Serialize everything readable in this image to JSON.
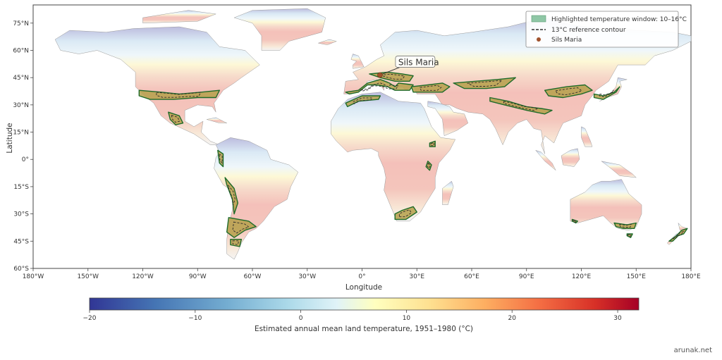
{
  "map": {
    "x_axis": {
      "title": "Longitude",
      "ticks": [
        {
          "value": -180,
          "label": "180°W"
        },
        {
          "value": -150,
          "label": "150°W"
        },
        {
          "value": -120,
          "label": "120°W"
        },
        {
          "value": -90,
          "label": "90°W"
        },
        {
          "value": -60,
          "label": "60°W"
        },
        {
          "value": -30,
          "label": "30°W"
        },
        {
          "value": 0,
          "label": "0°"
        },
        {
          "value": 30,
          "label": "30°E"
        },
        {
          "value": 60,
          "label": "60°E"
        },
        {
          "value": 90,
          "label": "90°E"
        },
        {
          "value": 120,
          "label": "120°E"
        },
        {
          "value": 150,
          "label": "150°E"
        },
        {
          "value": 180,
          "label": "180°E"
        }
      ],
      "range": [
        -180,
        180
      ]
    },
    "y_axis": {
      "title": "Latitude",
      "ticks": [
        {
          "value": 75,
          "label": "75°N"
        },
        {
          "value": 60,
          "label": "60°N"
        },
        {
          "value": 45,
          "label": "45°N"
        },
        {
          "value": 30,
          "label": "30°N"
        },
        {
          "value": 15,
          "label": "15°N"
        },
        {
          "value": 0,
          "label": "0°"
        },
        {
          "value": -15,
          "label": "15°S"
        },
        {
          "value": -30,
          "label": "30°S"
        },
        {
          "value": -45,
          "label": "45°S"
        },
        {
          "value": -60,
          "label": "60°S"
        }
      ],
      "range": [
        -60,
        85
      ]
    },
    "legend": {
      "placement": "top-right",
      "items": [
        {
          "label": "Highlighted temperature window: 10–16°C",
          "kind": "patch",
          "color": "#8fc7a6"
        },
        {
          "label": "13°C reference contour",
          "kind": "dashed-line",
          "color": "#333333"
        },
        {
          "label": "Sils Maria",
          "kind": "point",
          "color": "#a0522d"
        }
      ]
    },
    "annotation": {
      "label": "Sils Maria",
      "lon": 9.8,
      "lat": 46.4
    },
    "colors": {
      "cold": "#313695",
      "mid": "#ffffbf",
      "hot": "#a50026",
      "window_fill": "#b5a04a",
      "window_edge": "#1f6b2a"
    }
  },
  "colorbar": {
    "title": "Estimated annual mean land temperature, 1951–1980 (°C)",
    "min": -20,
    "max": 32,
    "ticks": [
      {
        "value": -20,
        "label": "−20"
      },
      {
        "value": -10,
        "label": "−10"
      },
      {
        "value": 0,
        "label": "0"
      },
      {
        "value": 10,
        "label": "10"
      },
      {
        "value": 20,
        "label": "20"
      },
      {
        "value": 30,
        "label": "30"
      }
    ]
  },
  "watermark": "arunak.net"
}
